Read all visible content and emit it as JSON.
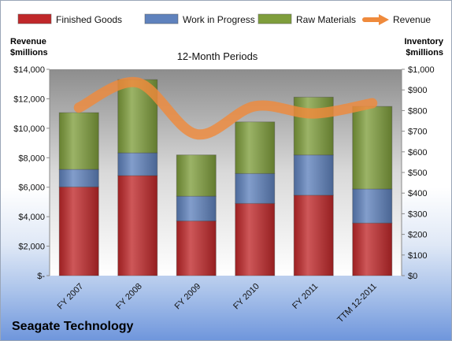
{
  "chart_data": {
    "type": "bar",
    "stacked": true,
    "title": "12-Month Periods",
    "categories": [
      "FY 2007",
      "FY 2008",
      "FY 2009",
      "FY 2010",
      "FY 2011",
      "TTM 12-2011"
    ],
    "series": [
      {
        "name": "Finished Goods",
        "axis": "right",
        "color": "#c0282a",
        "values": [
          430,
          485,
          265,
          350,
          390,
          255
        ]
      },
      {
        "name": "Work in Progress",
        "axis": "right",
        "color": "#5f82bd",
        "values": [
          85,
          110,
          120,
          145,
          195,
          165
        ]
      },
      {
        "name": "Raw Materials",
        "axis": "right",
        "color": "#7f9e3c",
        "values": [
          275,
          355,
          200,
          250,
          280,
          400
        ]
      },
      {
        "name": "Revenue",
        "axis": "left",
        "type": "line",
        "color": "#ef8a3c",
        "values": [
          11400,
          13100,
          9600,
          11500,
          11000,
          11700
        ]
      }
    ],
    "left_axis": {
      "title_lines": [
        "Revenue",
        "$millions"
      ],
      "min": 0,
      "max": 14000,
      "step": 2000,
      "tick_labels": [
        "$-",
        "$2,000",
        "$4,000",
        "$6,000",
        "$8,000",
        "$10,000",
        "$12,000",
        "$14,000"
      ]
    },
    "right_axis": {
      "title_lines": [
        "Inventory",
        "$millions"
      ],
      "min": 0,
      "max": 1000,
      "step": 100,
      "tick_labels": [
        "$0",
        "$100",
        "$200",
        "$300",
        "$400",
        "$500",
        "$600",
        "$700",
        "$800",
        "$900",
        "$1,000"
      ]
    },
    "legend_position": "top",
    "grid": false
  },
  "company": "Seagate Technology"
}
